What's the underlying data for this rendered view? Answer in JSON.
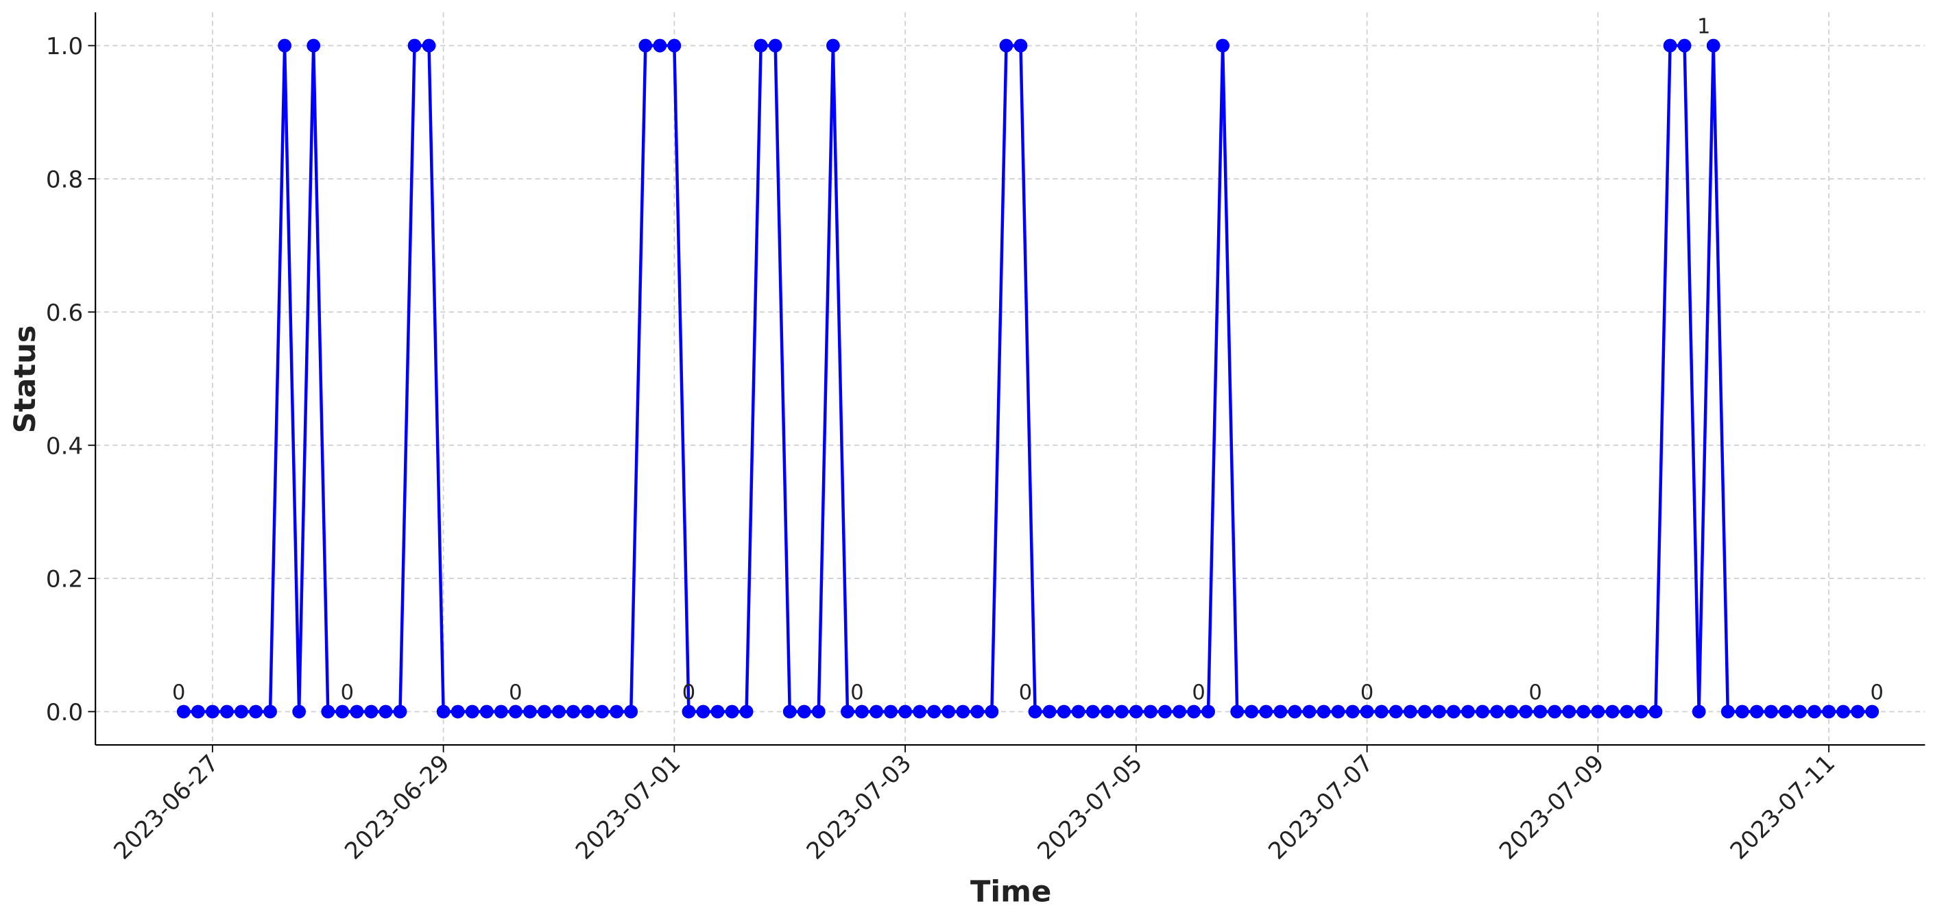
{
  "chart_data": {
    "type": "line",
    "xlabel": "Time",
    "ylabel": "Status",
    "color": "#0000ff",
    "grid": true,
    "xlim": [
      "2023-06-25 23:40",
      "2023-07-11 20:00"
    ],
    "xticks": [
      "2023-06-27",
      "2023-06-29",
      "2023-07-01",
      "2023-07-03",
      "2023-07-05",
      "2023-07-07",
      "2023-07-09",
      "2023-07-11"
    ],
    "ylim": [
      -0.05,
      1.05
    ],
    "yticks": [
      {
        "value": 0,
        "label": "0.0"
      },
      {
        "value": 0.2,
        "label": "0.2"
      },
      {
        "value": 0.4,
        "label": "0.4"
      },
      {
        "value": 0.6,
        "label": "0.6"
      },
      {
        "value": 0.8,
        "label": "0.8"
      },
      {
        "value": 1,
        "label": "1.0"
      }
    ],
    "x": [
      "2023-06-26 18:00",
      "2023-06-26 21:00",
      "2023-06-27 00:00",
      "2023-06-27 03:00",
      "2023-06-27 06:00",
      "2023-06-27 09:00",
      "2023-06-27 12:00",
      "2023-06-27 15:00",
      "2023-06-27 18:00",
      "2023-06-27 21:00",
      "2023-06-28 00:00",
      "2023-06-28 03:00",
      "2023-06-28 06:00",
      "2023-06-28 09:00",
      "2023-06-28 12:00",
      "2023-06-28 15:00",
      "2023-06-28 18:00",
      "2023-06-28 21:00",
      "2023-06-29 00:00",
      "2023-06-29 03:00",
      "2023-06-29 06:00",
      "2023-06-29 09:00",
      "2023-06-29 12:00",
      "2023-06-29 15:00",
      "2023-06-29 18:00",
      "2023-06-29 21:00",
      "2023-06-30 00:00",
      "2023-06-30 03:00",
      "2023-06-30 06:00",
      "2023-06-30 09:00",
      "2023-06-30 12:00",
      "2023-06-30 15:00",
      "2023-06-30 18:00",
      "2023-06-30 21:00",
      "2023-07-01 00:00",
      "2023-07-01 03:00",
      "2023-07-01 06:00",
      "2023-07-01 09:00",
      "2023-07-01 12:00",
      "2023-07-01 15:00",
      "2023-07-01 18:00",
      "2023-07-01 21:00",
      "2023-07-02 00:00",
      "2023-07-02 03:00",
      "2023-07-02 06:00",
      "2023-07-02 09:00",
      "2023-07-02 12:00",
      "2023-07-02 15:00",
      "2023-07-02 18:00",
      "2023-07-02 21:00",
      "2023-07-03 00:00",
      "2023-07-03 03:00",
      "2023-07-03 06:00",
      "2023-07-03 09:00",
      "2023-07-03 12:00",
      "2023-07-03 15:00",
      "2023-07-03 18:00",
      "2023-07-03 21:00",
      "2023-07-04 00:00",
      "2023-07-04 03:00",
      "2023-07-04 06:00",
      "2023-07-04 09:00",
      "2023-07-04 12:00",
      "2023-07-04 15:00",
      "2023-07-04 18:00",
      "2023-07-04 21:00",
      "2023-07-05 00:00",
      "2023-07-05 03:00",
      "2023-07-05 06:00",
      "2023-07-05 09:00",
      "2023-07-05 12:00",
      "2023-07-05 15:00",
      "2023-07-05 18:00",
      "2023-07-05 21:00",
      "2023-07-06 00:00",
      "2023-07-06 03:00",
      "2023-07-06 06:00",
      "2023-07-06 09:00",
      "2023-07-06 12:00",
      "2023-07-06 15:00",
      "2023-07-06 18:00",
      "2023-07-06 21:00",
      "2023-07-07 00:00",
      "2023-07-07 03:00",
      "2023-07-07 06:00",
      "2023-07-07 09:00",
      "2023-07-07 12:00",
      "2023-07-07 15:00",
      "2023-07-07 18:00",
      "2023-07-07 21:00",
      "2023-07-08 00:00",
      "2023-07-08 03:00",
      "2023-07-08 06:00",
      "2023-07-08 09:00",
      "2023-07-08 12:00",
      "2023-07-08 15:00",
      "2023-07-08 18:00",
      "2023-07-08 21:00",
      "2023-07-09 00:00",
      "2023-07-09 03:00",
      "2023-07-09 06:00",
      "2023-07-09 09:00",
      "2023-07-09 12:00",
      "2023-07-09 15:00",
      "2023-07-09 18:00",
      "2023-07-09 21:00",
      "2023-07-10 00:00",
      "2023-07-10 03:00",
      "2023-07-10 06:00",
      "2023-07-10 09:00",
      "2023-07-10 12:00",
      "2023-07-10 15:00",
      "2023-07-10 18:00",
      "2023-07-10 21:00",
      "2023-07-11 00:00",
      "2023-07-11 03:00",
      "2023-07-11 06:00",
      "2023-07-11 09:00"
    ],
    "values": [
      0,
      0,
      0,
      0,
      0,
      0,
      0,
      1,
      0,
      1,
      0,
      0,
      0,
      0,
      0,
      0,
      1,
      1,
      0,
      0,
      0,
      0,
      0,
      0,
      0,
      0,
      0,
      0,
      0,
      0,
      0,
      0,
      1,
      1,
      1,
      0,
      0,
      0,
      0,
      0,
      1,
      1,
      0,
      0,
      0,
      1,
      0,
      0,
      0,
      0,
      0,
      0,
      0,
      0,
      0,
      0,
      0,
      1,
      1,
      0,
      0,
      0,
      0,
      0,
      0,
      0,
      0,
      0,
      0,
      0,
      0,
      0,
      1,
      0,
      0,
      0,
      0,
      0,
      0,
      0,
      0,
      0,
      0,
      0,
      0,
      0,
      0,
      0,
      0,
      0,
      0,
      0,
      0,
      0,
      0,
      0,
      0,
      0,
      0,
      0,
      0,
      0,
      0,
      1,
      1,
      0,
      1,
      0,
      0,
      0,
      0,
      0,
      0,
      0,
      0,
      0,
      0,
      0
    ],
    "annotations": [
      {
        "x": "2023-06-26 17:00",
        "y": 0,
        "text": "0"
      },
      {
        "x": "2023-06-28 04:00",
        "y": 0,
        "text": "0"
      },
      {
        "x": "2023-06-29 15:00",
        "y": 0,
        "text": "0"
      },
      {
        "x": "2023-07-01 03:00",
        "y": 0,
        "text": "0"
      },
      {
        "x": "2023-07-02 14:00",
        "y": 0,
        "text": "0"
      },
      {
        "x": "2023-07-04 01:00",
        "y": 0,
        "text": "0"
      },
      {
        "x": "2023-07-05 13:00",
        "y": 0,
        "text": "0"
      },
      {
        "x": "2023-07-07 00:00",
        "y": 0,
        "text": "0"
      },
      {
        "x": "2023-07-08 11:00",
        "y": 0,
        "text": "0"
      },
      {
        "x": "2023-07-09 22:00",
        "y": 1,
        "text": "1"
      },
      {
        "x": "2023-07-11 10:00",
        "y": 0,
        "text": "0"
      }
    ]
  }
}
